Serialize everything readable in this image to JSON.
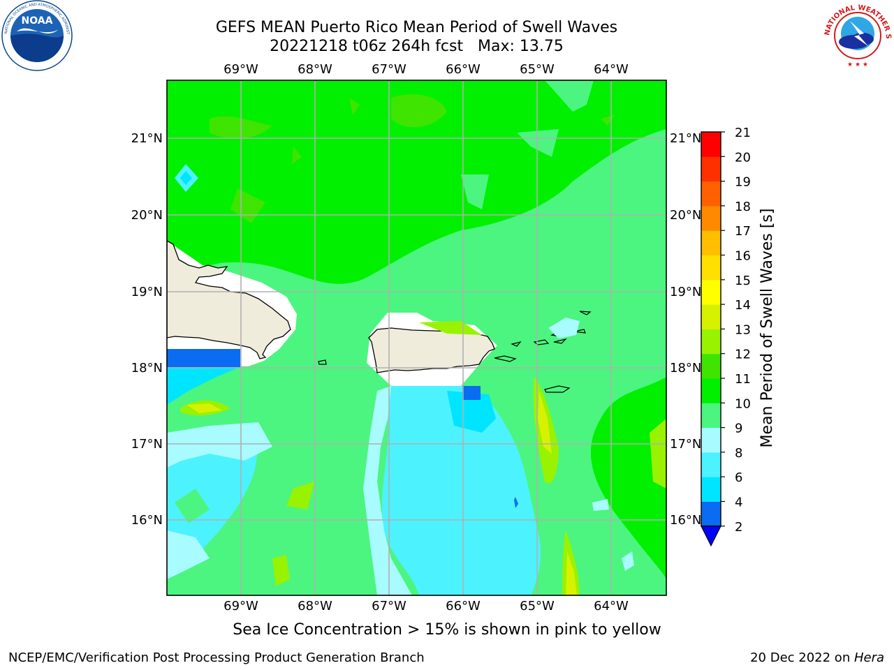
{
  "header": {
    "title_line1": "GEFS MEAN Puerto Rico Mean Period of Swell Waves",
    "title_line2": "20221218 t06z 264h fcst   Max: 13.75"
  },
  "axes": {
    "lon_labels": [
      "69°W",
      "68°W",
      "67°W",
      "66°W",
      "65°W",
      "64°W"
    ],
    "lat_labels": [
      "21°N",
      "20°N",
      "19°N",
      "18°N",
      "17°N",
      "16°N"
    ]
  },
  "colorbar": {
    "label": "Mean Period of Swell Waves [s]",
    "ticks": [
      "2",
      "4",
      "6",
      "8",
      "9",
      "10",
      "11",
      "12",
      "13",
      "14",
      "15",
      "16",
      "17",
      "18",
      "19",
      "20",
      "21"
    ],
    "colors": [
      "#0000ff",
      "#0a6cf0",
      "#00e5ff",
      "#4df2ff",
      "#a8fbff",
      "#4cf57f",
      "#00f000",
      "#3fe400",
      "#99f200",
      "#d6f200",
      "#ffff00",
      "#ffe000",
      "#ffbf00",
      "#ff8a00",
      "#ff6000",
      "#ff3000",
      "#ff0000"
    ]
  },
  "notes": {
    "ice": "Sea Ice Concentration > 15% is shown in pink to yellow"
  },
  "footer": {
    "left": "NCEP/EMC/Verification Post Processing Product Generation Branch",
    "date": "20 Dec 2022 on ",
    "machine": "Hera"
  },
  "logos": {
    "noaa": "NOAA",
    "noaa_ring": "NATIONAL OCEANIC AND ATMOSPHERIC ADMINISTRATION · U.S. DEPARTMENT OF COMMERCE",
    "nws_ring": "NATIONAL WEATHER SERVICE"
  },
  "icons": [
    "noaa-logo",
    "nws-logo"
  ]
}
